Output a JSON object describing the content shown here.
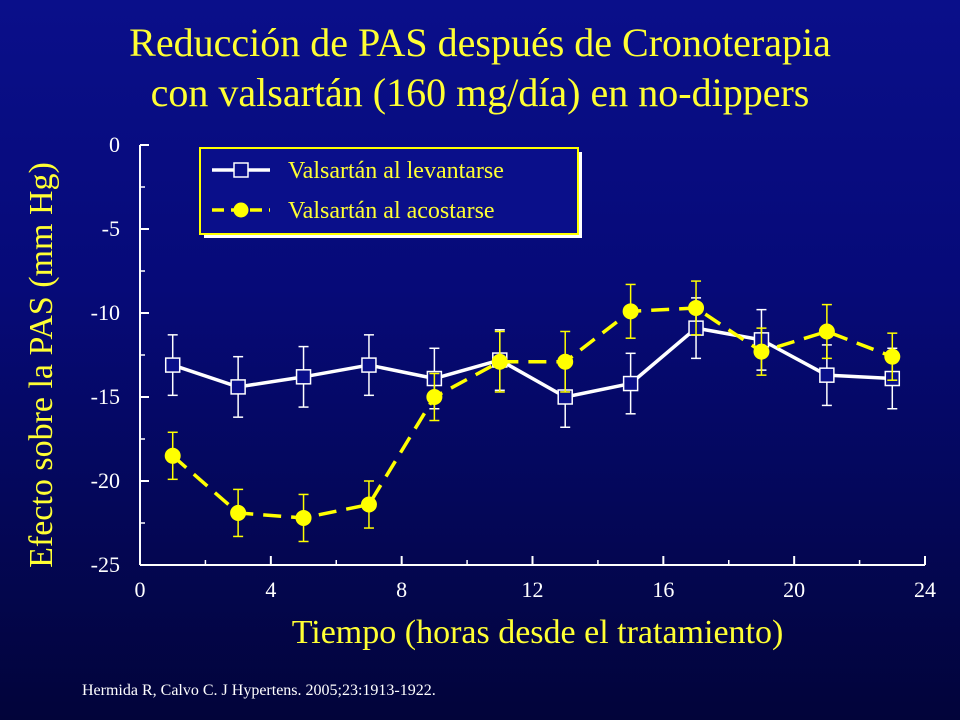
{
  "slide": {
    "title_line1": "Reducción de PAS después de Cronoterapia",
    "title_line2": "con valsartán (160 mg/día) en no-dippers",
    "citation": "Hermida R, Calvo C. J Hypertens. 2005;23:1913-1922."
  },
  "colors": {
    "background": "#0a0f8a",
    "title": "#ffff33",
    "series_wake": "#ffffff",
    "series_bed": "#ffff00",
    "legend_bg": "#0a0f8a",
    "legend_border": "#ffff00"
  },
  "chart_data": {
    "type": "line",
    "title": "",
    "xlabel": "Tiempo (horas desde el tratamiento)",
    "ylabel": "Efecto sobre la PAS (mm Hg)",
    "xlim": [
      0,
      24
    ],
    "ylim": [
      -25,
      0
    ],
    "xticks": [
      0,
      4,
      8,
      12,
      16,
      20,
      24
    ],
    "yticks": [
      0,
      -5,
      -10,
      -15,
      -20,
      -25
    ],
    "x_tick_labels": [
      "0",
      "4",
      "8",
      "12",
      "16",
      "20",
      "24"
    ],
    "y_tick_labels": [
      "0",
      "-5",
      "-10",
      "-15",
      "-20",
      "-25"
    ],
    "grid": false,
    "legend_position": "top-left",
    "series": [
      {
        "name": "Valsartán al levantarse",
        "marker": "open-square",
        "line_style": "solid",
        "color": "#ffffff",
        "x": [
          1,
          3,
          5,
          7,
          9,
          11,
          13,
          15,
          17,
          19,
          21,
          23
        ],
        "y": [
          -13.1,
          -14.4,
          -13.8,
          -13.1,
          -13.9,
          -12.8,
          -15.0,
          -14.2,
          -10.9,
          -11.6,
          -13.7,
          -13.9
        ],
        "error": [
          1.8,
          1.8,
          1.8,
          1.8,
          1.8,
          1.8,
          1.8,
          1.8,
          1.8,
          1.8,
          1.8,
          1.8
        ]
      },
      {
        "name": "Valsartán al acostarse",
        "marker": "filled-circle",
        "line_style": "dashed",
        "color": "#ffff00",
        "x": [
          1,
          3,
          5,
          7,
          9,
          11,
          13,
          15,
          17,
          19,
          21,
          23
        ],
        "y": [
          -18.5,
          -21.9,
          -22.2,
          -21.4,
          -15.0,
          -12.9,
          -12.9,
          -9.9,
          -9.7,
          -12.3,
          -11.1,
          -12.6
        ],
        "error": [
          1.4,
          1.4,
          1.4,
          1.4,
          1.4,
          1.8,
          1.8,
          1.6,
          1.6,
          1.4,
          1.6,
          1.4
        ]
      }
    ]
  }
}
